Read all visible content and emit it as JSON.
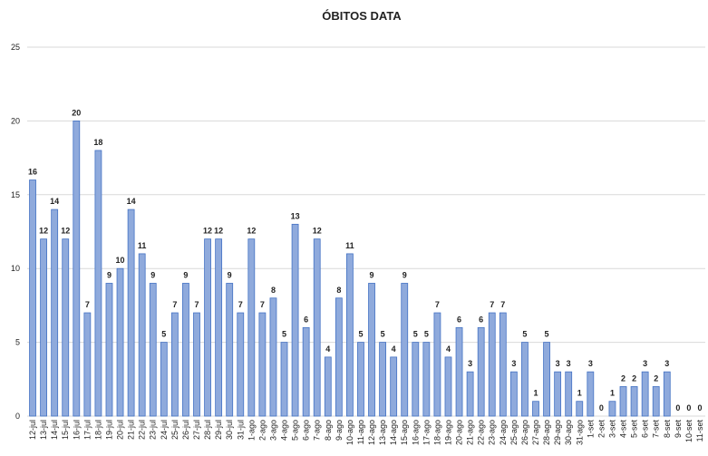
{
  "chart_data": {
    "type": "bar",
    "title": "ÓBITOS DATA",
    "categories": [
      "12-jul",
      "13-jul",
      "14-jul",
      "15-jul",
      "16-jul",
      "17-jul",
      "18-jul",
      "19-jul",
      "20-jul",
      "21-jul",
      "22-jul",
      "23-jul",
      "24-jul",
      "25-jul",
      "26-jul",
      "27-jul",
      "28-jul",
      "29-jul",
      "30-jul",
      "31-jul",
      "1-ago",
      "2-ago",
      "3-ago",
      "4-ago",
      "5-ago",
      "6-ago",
      "7-ago",
      "8-ago",
      "9-ago",
      "10-ago",
      "11-ago",
      "12-ago",
      "13-ago",
      "14-ago",
      "15-ago",
      "16-ago",
      "17-ago",
      "18-ago",
      "19-ago",
      "20-ago",
      "21-ago",
      "22-ago",
      "23-ago",
      "24-ago",
      "25-ago",
      "26-ago",
      "27-ago",
      "28-ago",
      "29-ago",
      "30-ago",
      "31-ago",
      "1-set",
      "2-set",
      "3-set",
      "4-set",
      "5-set",
      "6-set",
      "7-set",
      "8-set",
      "9-set",
      "10-set",
      "11-set"
    ],
    "values": [
      16,
      12,
      14,
      12,
      20,
      7,
      18,
      9,
      10,
      14,
      11,
      9,
      5,
      7,
      9,
      7,
      12,
      12,
      9,
      7,
      12,
      7,
      8,
      5,
      13,
      6,
      12,
      4,
      8,
      11,
      5,
      9,
      5,
      4,
      9,
      5,
      5,
      7,
      4,
      6,
      3,
      6,
      7,
      7,
      3,
      5,
      1,
      5,
      3,
      3,
      1,
      3,
      0,
      1,
      2,
      2,
      3,
      2,
      3,
      0,
      0,
      0
    ],
    "color": "#8faadc",
    "ylim": [
      0,
      25
    ],
    "yticks": [
      0,
      5,
      10,
      15,
      20,
      25
    ],
    "grid": true,
    "data_labels": true
  }
}
